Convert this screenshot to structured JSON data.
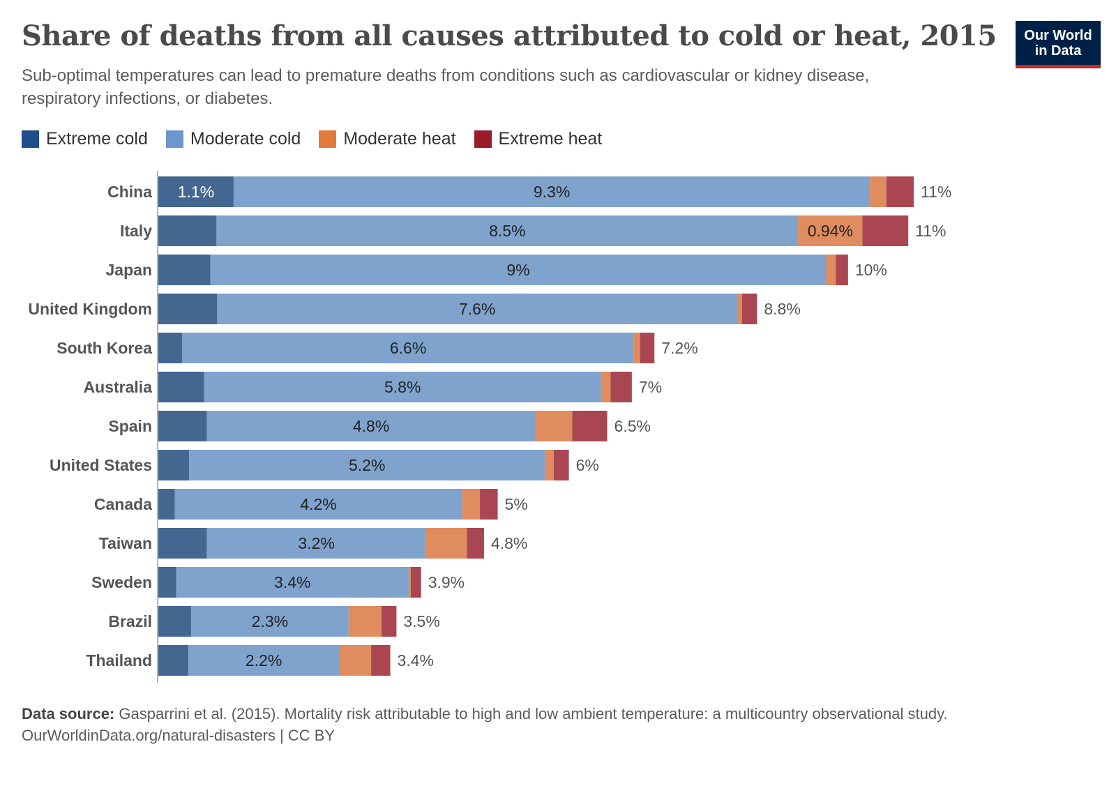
{
  "header": {
    "title": "Share of deaths from all causes attributed to cold or heat, 2015",
    "subtitle": "Sub-optimal temperatures can lead to premature deaths from conditions such as cardiovascular or kidney disease, respiratory infections, or diabetes.",
    "logo_line1": "Our World",
    "logo_line2": "in Data"
  },
  "chart_data": {
    "type": "bar",
    "orientation": "horizontal",
    "stacked": true,
    "title": "Share of deaths from all causes attributed to cold or heat, 2015",
    "legend_position": "top-left",
    "grid": false,
    "categories": [
      "China",
      "Italy",
      "Japan",
      "United Kingdom",
      "South Korea",
      "Australia",
      "Spain",
      "United States",
      "Canada",
      "Taiwan",
      "Sweden",
      "Brazil",
      "Thailand"
    ],
    "series": [
      {
        "name": "Extreme cold",
        "color": "#1f4e8c",
        "bar_color": "#436791",
        "values": [
          1.1,
          0.85,
          0.76,
          0.86,
          0.35,
          0.67,
          0.71,
          0.45,
          0.24,
          0.71,
          0.26,
          0.48,
          0.44
        ],
        "labels": [
          "1.1%",
          "",
          "",
          "",
          "",
          "",
          "",
          "",
          "",
          "",
          "",
          "",
          ""
        ]
      },
      {
        "name": "Moderate cold",
        "color": "#6d97cc",
        "bar_color": "#7fa3cd",
        "values": [
          9.3,
          8.5,
          9,
          7.6,
          6.6,
          5.8,
          4.8,
          5.2,
          4.2,
          3.2,
          3.4,
          2.3,
          2.2
        ],
        "labels": [
          "9.3%",
          "8.5%",
          "9%",
          "7.6%",
          "6.6%",
          "5.8%",
          "4.8%",
          "5.2%",
          "4.2%",
          "3.2%",
          "3.4%",
          "2.3%",
          "2.2%"
        ]
      },
      {
        "name": "Moderate heat",
        "color": "#e07b3c",
        "bar_color": "#df8c5e",
        "values": [
          0.24,
          0.94,
          0.14,
          0.07,
          0.09,
          0.14,
          0.54,
          0.13,
          0.26,
          0.6,
          0.03,
          0.48,
          0.47
        ],
        "labels": [
          "",
          "0.94%",
          "",
          "",
          "",
          "",
          "",
          "",
          "",
          "",
          "",
          "",
          ""
        ]
      },
      {
        "name": "Extreme heat",
        "color": "#9a1b2a",
        "bar_color": "#aa4652",
        "values": [
          0.4,
          0.67,
          0.18,
          0.22,
          0.21,
          0.31,
          0.51,
          0.22,
          0.26,
          0.25,
          0.15,
          0.22,
          0.28
        ],
        "labels": [
          "",
          "",
          "",
          "",
          "",
          "",
          "",
          "",
          "",
          "",
          "",
          "",
          ""
        ]
      }
    ],
    "totals": [
      "11%",
      "11%",
      "10%",
      "8.8%",
      "7.2%",
      "7%",
      "6.5%",
      "6%",
      "5%",
      "4.8%",
      "3.9%",
      "3.5%",
      "3.4%"
    ]
  },
  "footer": {
    "source_label": "Data source:",
    "source_text": "Gasparrini et al. (2015). Mortality risk attributable to high and low ambient temperature: a multicountry observational study.",
    "url": "OurWorldinData.org/natural-disasters | CC BY"
  }
}
